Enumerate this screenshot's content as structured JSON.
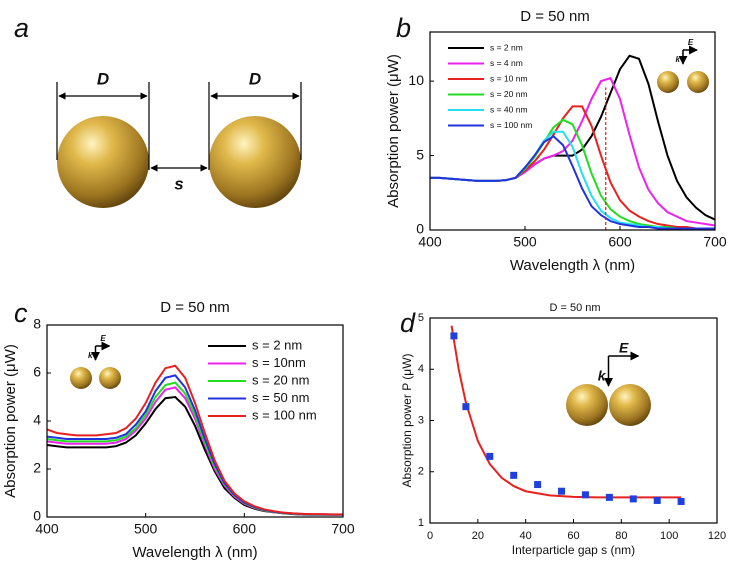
{
  "diagram": {
    "panel_label": "a",
    "labels": [
      "D",
      "D",
      "s"
    ]
  },
  "chart_data": [
    {
      "type": "line",
      "panel_label": "b",
      "title": "D = 50 nm",
      "x_label": "Wavelength λ (nm)",
      "y_label": "Absorption power (μW)",
      "x": [
        400,
        410,
        420,
        430,
        440,
        450,
        460,
        470,
        480,
        490,
        500,
        510,
        520,
        530,
        540,
        550,
        560,
        570,
        580,
        590,
        600,
        610,
        620,
        630,
        640,
        650,
        660,
        670,
        680,
        690,
        700
      ],
      "xlim": [
        400,
        700
      ],
      "xticks": [
        400,
        500,
        600,
        700
      ],
      "ylim": [
        0,
        13.3
      ],
      "yticks": [
        0,
        5,
        10
      ],
      "vline": {
        "x": 585,
        "color": "#d42020"
      },
      "inset_labels": [
        "E",
        "k"
      ],
      "series": [
        {
          "name": "s = 2 nm",
          "color": "#000000",
          "values": [
            3.5,
            3.5,
            3.45,
            3.4,
            3.35,
            3.3,
            3.3,
            3.3,
            3.35,
            3.5,
            3.9,
            4.4,
            4.8,
            5.0,
            5.0,
            5.0,
            5.4,
            6.3,
            7.6,
            9.2,
            10.8,
            11.7,
            11.5,
            9.8,
            7.3,
            5.0,
            3.3,
            2.2,
            1.5,
            1.0,
            0.7
          ]
        },
        {
          "name": "s = 4 nm",
          "color": "#ee22ee",
          "values": [
            3.5,
            3.5,
            3.45,
            3.4,
            3.35,
            3.3,
            3.3,
            3.3,
            3.35,
            3.5,
            3.9,
            4.4,
            4.8,
            5.0,
            5.3,
            6.0,
            7.3,
            8.8,
            10.0,
            10.2,
            8.8,
            6.4,
            4.2,
            2.7,
            1.8,
            1.2,
            0.9,
            0.6,
            0.5,
            0.4,
            0.3
          ]
        },
        {
          "name": "s = 10 nm",
          "color": "#e82020",
          "values": [
            3.5,
            3.5,
            3.45,
            3.4,
            3.35,
            3.3,
            3.3,
            3.3,
            3.35,
            3.5,
            4.0,
            4.6,
            5.4,
            6.4,
            7.5,
            8.3,
            8.3,
            7.0,
            5.0,
            3.2,
            2.0,
            1.3,
            0.9,
            0.6,
            0.4,
            0.3,
            0.2,
            0.2,
            0.1,
            0.1,
            0.1
          ]
        },
        {
          "name": "s = 20 nm",
          "color": "#22dd22",
          "values": [
            3.5,
            3.5,
            3.45,
            3.4,
            3.35,
            3.3,
            3.3,
            3.3,
            3.35,
            3.5,
            4.1,
            4.9,
            5.9,
            6.9,
            7.4,
            7.1,
            5.7,
            3.8,
            2.3,
            1.4,
            0.9,
            0.6,
            0.4,
            0.3,
            0.2,
            0.2,
            0.1,
            0.1,
            0.1,
            0.1,
            0.1
          ]
        },
        {
          "name": "s = 40 nm",
          "color": "#22e0ee",
          "values": [
            3.5,
            3.5,
            3.45,
            3.4,
            3.35,
            3.3,
            3.3,
            3.3,
            3.35,
            3.5,
            4.2,
            5.0,
            6.0,
            6.6,
            6.6,
            5.6,
            3.8,
            2.3,
            1.3,
            0.8,
            0.5,
            0.4,
            0.3,
            0.2,
            0.2,
            0.1,
            0.1,
            0.1,
            0.1,
            0.1,
            0.1
          ]
        },
        {
          "name": "s = 100 nm",
          "color": "#2233dd",
          "values": [
            3.5,
            3.5,
            3.45,
            3.4,
            3.35,
            3.3,
            3.3,
            3.3,
            3.35,
            3.5,
            4.2,
            5.0,
            5.9,
            6.3,
            5.7,
            4.3,
            2.8,
            1.6,
            1.0,
            0.6,
            0.4,
            0.3,
            0.2,
            0.2,
            0.1,
            0.1,
            0.1,
            0.1,
            0.1,
            0.1,
            0.1
          ]
        }
      ]
    },
    {
      "type": "line",
      "panel_label": "c",
      "title": "D = 50 nm",
      "x_label": "Wavelength λ (nm)",
      "y_label": "Absorption power (μW)",
      "x": [
        400,
        410,
        420,
        430,
        440,
        450,
        460,
        470,
        480,
        490,
        500,
        510,
        520,
        530,
        540,
        550,
        560,
        570,
        580,
        590,
        600,
        610,
        620,
        630,
        640,
        650,
        660,
        670,
        680,
        690,
        700
      ],
      "xlim": [
        400,
        700
      ],
      "xticks": [
        400,
        500,
        600,
        700
      ],
      "ylim": [
        0,
        8
      ],
      "yticks": [
        0,
        2,
        4,
        6,
        8
      ],
      "inset_labels": [
        "E",
        "k"
      ],
      "series": [
        {
          "name": "s = 2 nm",
          "color": "#000000",
          "values": [
            3.0,
            2.95,
            2.9,
            2.9,
            2.9,
            2.9,
            2.9,
            2.95,
            3.1,
            3.4,
            3.9,
            4.5,
            4.95,
            5.0,
            4.6,
            3.8,
            2.8,
            1.9,
            1.2,
            0.8,
            0.5,
            0.35,
            0.25,
            0.2,
            0.15,
            0.12,
            0.1,
            0.1,
            0.1,
            0.1,
            0.1
          ]
        },
        {
          "name": "s = 10nm",
          "color": "#ee22ee",
          "values": [
            3.15,
            3.1,
            3.05,
            3.05,
            3.05,
            3.05,
            3.05,
            3.1,
            3.25,
            3.6,
            4.1,
            4.8,
            5.3,
            5.4,
            4.95,
            4.1,
            3.0,
            2.0,
            1.3,
            0.85,
            0.55,
            0.38,
            0.27,
            0.2,
            0.16,
            0.13,
            0.1,
            0.1,
            0.1,
            0.1,
            0.1
          ]
        },
        {
          "name": "s = 20 nm",
          "color": "#22dd22",
          "values": [
            3.25,
            3.2,
            3.15,
            3.15,
            3.15,
            3.15,
            3.15,
            3.2,
            3.35,
            3.7,
            4.25,
            5.0,
            5.5,
            5.6,
            5.15,
            4.25,
            3.1,
            2.1,
            1.35,
            0.9,
            0.58,
            0.4,
            0.28,
            0.21,
            0.16,
            0.13,
            0.11,
            0.1,
            0.1,
            0.1,
            0.1
          ]
        },
        {
          "name": "s = 50 nm",
          "color": "#2233dd",
          "values": [
            3.35,
            3.3,
            3.25,
            3.25,
            3.25,
            3.25,
            3.25,
            3.3,
            3.45,
            3.85,
            4.4,
            5.25,
            5.8,
            5.9,
            5.4,
            4.45,
            3.25,
            2.2,
            1.4,
            0.92,
            0.6,
            0.42,
            0.3,
            0.22,
            0.17,
            0.14,
            0.12,
            0.11,
            0.11,
            0.1,
            0.1
          ]
        },
        {
          "name": "s = 100 nm",
          "color": "#e82020",
          "values": [
            3.65,
            3.5,
            3.45,
            3.4,
            3.4,
            3.4,
            3.45,
            3.5,
            3.7,
            4.1,
            4.75,
            5.6,
            6.2,
            6.3,
            5.8,
            4.75,
            3.5,
            2.35,
            1.5,
            0.98,
            0.65,
            0.45,
            0.32,
            0.24,
            0.18,
            0.15,
            0.13,
            0.12,
            0.12,
            0.11,
            0.11
          ]
        }
      ]
    },
    {
      "type": "scatter",
      "panel_label": "d",
      "title": "D = 50 nm",
      "x_label": "Interparticle gap s (nm)",
      "y_label": "Absorption power P (μW)",
      "xlim": [
        0,
        120
      ],
      "xticks": [
        0,
        20,
        40,
        60,
        80,
        100,
        120
      ],
      "ylim": [
        1,
        5
      ],
      "yticks": [
        1,
        2,
        3,
        4,
        5
      ],
      "inset_labels": [
        "E",
        "k"
      ],
      "series": [
        {
          "color": "#e82020",
          "style": "line",
          "x": [
            9,
            12,
            15,
            20,
            25,
            30,
            35,
            40,
            50,
            60,
            70,
            80,
            90,
            105
          ],
          "values": [
            4.85,
            4.0,
            3.35,
            2.6,
            2.15,
            1.88,
            1.72,
            1.62,
            1.54,
            1.51,
            1.5,
            1.5,
            1.5,
            1.5
          ]
        },
        {
          "color": "#2040dd",
          "style": "marker",
          "x": [
            10,
            15,
            25,
            35,
            45,
            55,
            65,
            75,
            85,
            95,
            105
          ],
          "values": [
            4.65,
            3.27,
            2.3,
            1.93,
            1.75,
            1.62,
            1.55,
            1.5,
            1.47,
            1.44,
            1.42
          ]
        }
      ]
    }
  ]
}
